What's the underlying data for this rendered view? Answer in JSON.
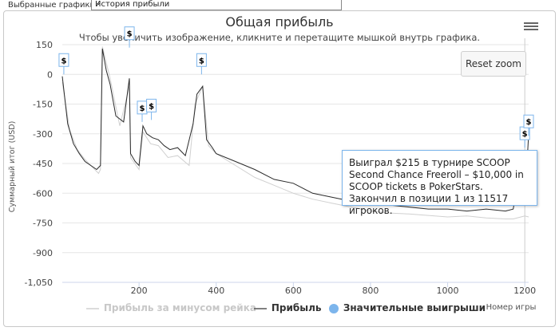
{
  "toolbar": {
    "label": "Выбранные графики:",
    "selected_value": "История прибыли"
  },
  "chart_header": {
    "title": "Общая прибыль",
    "subtitle": "Чтобы увеличить изображение, кликните и перетащите мышкой внутрь графика.",
    "reset_zoom": "Reset zoom"
  },
  "tooltip": {
    "text": "Выиграл $215 в турнире SCOOP Second Chance Freeroll – $10,000 in SCOOP tickets в PokerStars. Закончил в позиции 1 из 11517 игроков."
  },
  "colors": {
    "profit_line": "#2a2a2a",
    "rake_line": "#d0d0d0",
    "marker": "#7cb5ec",
    "grid": "#e6e6e6"
  },
  "chart_data": {
    "type": "line",
    "title": "Общая прибыль",
    "xlabel": "Номер игры",
    "ylabel": "Суммарный итог (USD)",
    "xlim": [
      1,
      1210
    ],
    "ylim": [
      -1050,
      150
    ],
    "x_ticks": [
      200,
      400,
      600,
      800,
      1000,
      1200
    ],
    "y_ticks": [
      150,
      0,
      -150,
      -300,
      -450,
      -600,
      -750,
      -900,
      -1050
    ],
    "x_tick_labels": [
      "200",
      "400",
      "600",
      "800",
      "1000",
      "1200"
    ],
    "y_tick_labels": [
      "150",
      "0",
      "-150",
      "-300",
      "-450",
      "-600",
      "-750",
      "-900",
      "-1,050"
    ],
    "legend_position": "bottom",
    "series": [
      {
        "name": "Прибыль за минусом рейка",
        "x": [
          1,
          20,
          40,
          60,
          80,
          95,
          100,
          105,
          125,
          150,
          175,
          178,
          200,
          210,
          230,
          250,
          275,
          300,
          330,
          345,
          365,
          380,
          400,
          450,
          500,
          550,
          600,
          650,
          700,
          750,
          800,
          850,
          900,
          950,
          1000,
          1050,
          1100,
          1150,
          1170,
          1190,
          1200,
          1210
        ],
        "y": [
          -40,
          -280,
          -380,
          -430,
          -470,
          -500,
          -480,
          140,
          -20,
          -260,
          -60,
          -420,
          -480,
          -290,
          -350,
          -360,
          -420,
          -410,
          -460,
          -150,
          -60,
          -360,
          -400,
          -460,
          -520,
          -560,
          -600,
          -630,
          -650,
          -670,
          -690,
          -700,
          -705,
          -712,
          -720,
          -715,
          -725,
          -730,
          -730,
          -720,
          -715,
          -720
        ]
      },
      {
        "name": "Прибыль",
        "x": [
          1,
          15,
          30,
          45,
          60,
          75,
          90,
          100,
          105,
          115,
          125,
          140,
          160,
          175,
          178,
          190,
          200,
          210,
          220,
          235,
          250,
          265,
          280,
          300,
          320,
          340,
          350,
          365,
          375,
          390,
          400,
          450,
          500,
          550,
          600,
          650,
          700,
          750,
          800,
          850,
          900,
          950,
          1000,
          1050,
          1100,
          1150,
          1170,
          1185,
          1195,
          1200,
          1210
        ],
        "y": [
          -10,
          -250,
          -350,
          -400,
          -440,
          -460,
          -480,
          -460,
          130,
          20,
          -50,
          -210,
          -240,
          -20,
          -400,
          -440,
          -460,
          -260,
          -300,
          -320,
          -330,
          -360,
          -380,
          -370,
          -410,
          -250,
          -100,
          -60,
          -330,
          -370,
          -400,
          -440,
          -480,
          -530,
          -550,
          -600,
          -620,
          -640,
          -660,
          -660,
          -670,
          -680,
          -680,
          -690,
          -680,
          -690,
          -680,
          -500,
          -640,
          -650,
          -300
        ]
      },
      {
        "name": "Значительные выигрыши",
        "x": [
          5,
          175,
          208,
          232,
          362,
          1200,
          1210
        ],
        "y": [
          0,
          135,
          -240,
          -230,
          0,
          -370,
          -310
        ]
      }
    ]
  },
  "legend": {
    "rake": "Прибыль за минусом рейка",
    "profit": "Прибыль",
    "wins": "Значительные выигрыши"
  }
}
